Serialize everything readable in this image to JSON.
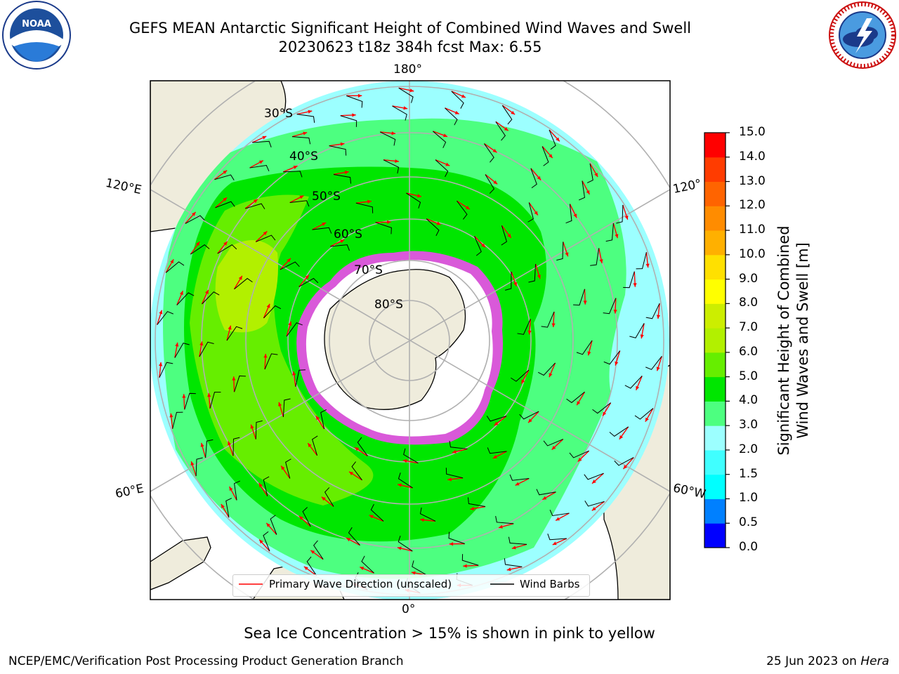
{
  "header": {
    "title_line1": "GEFS MEAN Antarctic Significant Height of Combined Wind Waves and Swell",
    "title_line2": "20230623 t18z 384h fcst   Max: 6.55"
  },
  "logos": {
    "left": "NOAA",
    "right": "NATIONAL WEATHER SERVICE"
  },
  "map": {
    "projection": "south-polar-stereographic",
    "lon_labels": {
      "top": "180°",
      "bottom": "0°",
      "upper_left": "120°E",
      "lower_left": "60°E",
      "upper_right": "120°",
      "lower_right": "60°W"
    },
    "lat_labels": [
      "30°S",
      "40°S",
      "50°S",
      "60°S",
      "70°S",
      "80°S"
    ]
  },
  "colorbar": {
    "label_line1": "Significant Height of Combined",
    "label_line2": "Wind Waves and Swell [m]",
    "ticks": [
      "0.0",
      "0.5",
      "1.0",
      "1.5",
      "2.0",
      "3.0",
      "4.0",
      "5.0",
      "6.0",
      "7.0",
      "8.0",
      "9.0",
      "10.0",
      "11.0",
      "12.0",
      "13.0",
      "14.0",
      "15.0"
    ],
    "colors": [
      "#0000ff",
      "#0080ff",
      "#00ffff",
      "#40ffff",
      "#9cffff",
      "#4dff80",
      "#00e600",
      "#66ee00",
      "#b2f000",
      "#ccee00",
      "#ffff00",
      "#ffe000",
      "#ffb000",
      "#ff8c00",
      "#ff6400",
      "#ff3c00",
      "#ff0000"
    ]
  },
  "legend": {
    "wave_label": "Primary Wave Direction (unscaled)",
    "barb_label": "Wind Barbs",
    "wave_color": "#ff0000",
    "barb_color": "#000000"
  },
  "note": "Sea Ice Concentration > 15% is shown in pink to yellow",
  "footer": {
    "left": "NCEP/EMC/Verification Post Processing Product Generation Branch",
    "right_date": "25 Jun 2023 on ",
    "right_host": "Hera"
  }
}
